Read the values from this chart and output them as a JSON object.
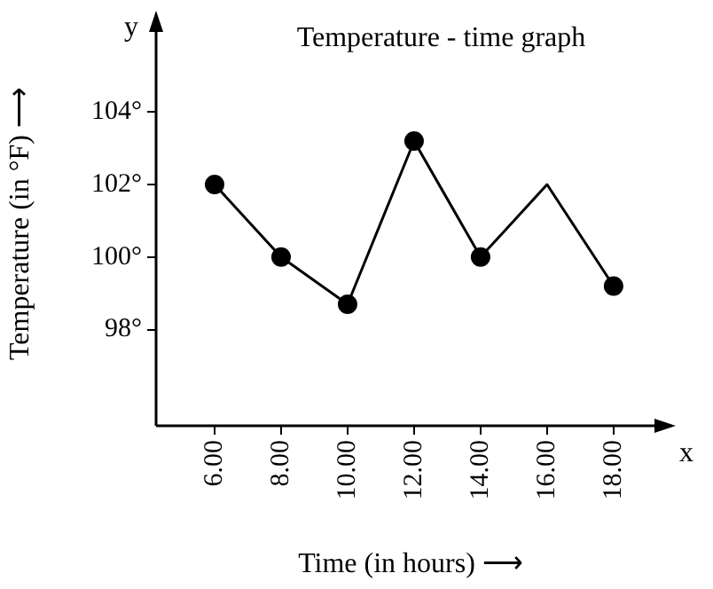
{
  "chart_data": {
    "type": "line",
    "title": "Temperature - time graph",
    "xlabel": "Time (in hours) ⟶",
    "ylabel": "Temperature (in °F) ⟶",
    "annotations": [
      "y",
      "x"
    ],
    "x": [
      6,
      8,
      10,
      12,
      14,
      16,
      18
    ],
    "series": [
      {
        "type": "line",
        "color": "#000000",
        "values": [
          102,
          100,
          98.7,
          103.2,
          100,
          102,
          99.2
        ],
        "marker": "none"
      },
      {
        "type": "scatter",
        "color": "#000000",
        "values": [
          102,
          100,
          98.7,
          103.2,
          100,
          null,
          99.2
        ],
        "marker": "circle"
      }
    ],
    "xlim": [
      4.24,
      19.55
    ],
    "xticks": [
      {
        "value": 6,
        "label": "6.00"
      },
      {
        "value": 8,
        "label": "8.00"
      },
      {
        "value": 10,
        "label": "10.00"
      },
      {
        "value": 12,
        "label": "12.00"
      },
      {
        "value": 14,
        "label": "14.00"
      },
      {
        "value": 16,
        "label": "16.00"
      },
      {
        "value": 18,
        "label": "18.00"
      }
    ],
    "ylim": [
      95.35,
      106.5
    ],
    "yticks": [
      {
        "value": 98,
        "label": "98°"
      },
      {
        "value": 100,
        "label": "100°"
      },
      {
        "value": 102,
        "label": "102°"
      },
      {
        "value": 104,
        "label": "104°"
      }
    ],
    "grid": false,
    "legend": false
  }
}
